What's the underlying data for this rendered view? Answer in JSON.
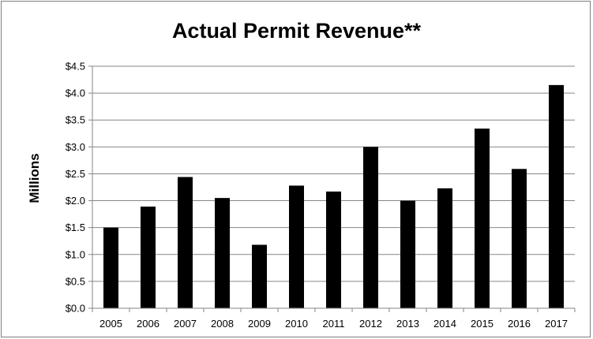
{
  "chart_data": {
    "type": "bar",
    "title": "Actual Permit Revenue**",
    "xlabel": "",
    "ylabel": "Millions",
    "categories": [
      "2005",
      "2006",
      "2007",
      "2008",
      "2009",
      "2010",
      "2011",
      "2012",
      "2013",
      "2014",
      "2015",
      "2016",
      "2017"
    ],
    "values": [
      1.5,
      1.89,
      2.44,
      2.05,
      1.18,
      2.28,
      2.17,
      3.0,
      2.0,
      2.23,
      3.34,
      2.59,
      4.15
    ],
    "ylim": [
      0,
      4.5
    ],
    "y_ticks": [
      "$0.0",
      "$0.5",
      "$1.0",
      "$1.5",
      "$2.0",
      "$2.5",
      "$3.0",
      "$3.5",
      "$4.0",
      "$4.5"
    ],
    "y_tick_values": [
      0,
      0.5,
      1.0,
      1.5,
      2.0,
      2.5,
      3.0,
      3.5,
      4.0,
      4.5
    ],
    "grid": true,
    "legend": "none",
    "bar_color": "#000000",
    "grid_color": "#868686"
  }
}
